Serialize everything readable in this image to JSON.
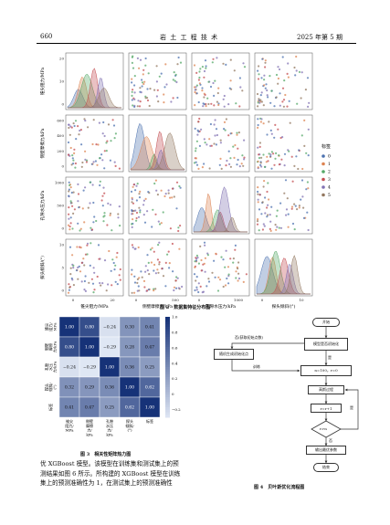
{
  "header": {
    "page_number": "660",
    "journal_title": "岩 土 工 程 技 术",
    "issue": "2025 年第 5 期"
  },
  "figure2": {
    "caption": "图 2　数据集特征分布图",
    "y_labels": [
      "锥尖阻力/MPa",
      "侧壁摩擦力/kPa",
      "孔隙水压力/kPa",
      "探头倾斜/(°)"
    ],
    "x_labels": [
      "锥尖阻力/MPa",
      "侧壁摩擦力/kPa",
      "孔隙水压力/kPa",
      "探头倾斜/(°)"
    ],
    "y_ticks": [
      [
        "20",
        "10",
        "0"
      ],
      [
        "600",
        "400",
        "200",
        "0"
      ],
      [
        "1000",
        "500",
        "0"
      ],
      [
        "10",
        "5",
        "0"
      ]
    ],
    "x_ticks": [
      [
        "0",
        "20"
      ],
      [
        "0",
        "500"
      ],
      [
        "0",
        "1000"
      ],
      [
        "0",
        "10"
      ]
    ],
    "legend_title": "标签",
    "legend_items": [
      "0",
      "1",
      "2",
      "3",
      "4",
      "5"
    ],
    "class_colors": [
      "#4c72b0",
      "#dd8452",
      "#55a868",
      "#c44e52",
      "#8172b3",
      "#937860"
    ]
  },
  "figure3": {
    "caption": "图 3　相关性矩阵热力图",
    "row_labels": [
      "锥尖\n阻力/\nMPa",
      "侧壁\n摩擦\n力/kPa",
      "孔隙\n水压\n力/kPa",
      "探头\n倾斜/\n(°)",
      "标签"
    ],
    "col_labels": [
      "锥尖\n阻力/\nMPa",
      "侧壁\n摩擦\n力/\nkPa",
      "孔隙\n水压\n力/\nkPa",
      "探头\n倾斜/\n(°)",
      "标签"
    ],
    "matrix": [
      [
        "1.00",
        "0.80",
        "−0.24",
        "0.30",
        "0.41"
      ],
      [
        "0.80",
        "1.00",
        "−0.29",
        "0.28",
        "0.47"
      ],
      [
        "−0.24",
        "−0.29",
        "1.00",
        "0.36",
        "0.25"
      ],
      [
        "0.32",
        "0.29",
        "0.36",
        "1.00",
        "0.62"
      ],
      [
        "0.41",
        "0.47",
        "0.25",
        "0.62",
        "1.00"
      ]
    ],
    "values": [
      [
        1.0,
        0.8,
        -0.24,
        0.3,
        0.41
      ],
      [
        0.8,
        1.0,
        -0.29,
        0.28,
        0.47
      ],
      [
        -0.24,
        -0.29,
        1.0,
        0.36,
        0.25
      ],
      [
        0.32,
        0.29,
        0.36,
        1.0,
        0.62
      ],
      [
        0.41,
        0.47,
        0.25,
        0.62,
        1.0
      ]
    ],
    "colorbar_ticks": [
      "1.0",
      "0.8",
      "0.6",
      "0.4",
      "0.2",
      "0",
      "−0.2"
    ]
  },
  "figure4": {
    "caption": "图 4　贝叶斯优化流程图",
    "nodes": {
      "start": "开始",
      "init_check": "模型是否初始化",
      "random_params": "随机生成初始化点",
      "set_params": "n=100，r=0",
      "gp": "高斯过程",
      "incr": "r=r+1",
      "cond": "r>n",
      "output": "输出最优参数",
      "end": "结束"
    },
    "edge_labels": {
      "no_get_init": "否(获取初始点数)",
      "yes": "是",
      "train": "训练",
      "yes2": "是",
      "no2": "否"
    }
  },
  "body_text": [
    "优 XGBoost 模型。该模型在训练集和测试集上的预",
    "测结果如图 6 所示。所构建的 XGBoost 模型在训练",
    "集上的预测准确性为 1，在测试集上的预测准确性"
  ]
}
